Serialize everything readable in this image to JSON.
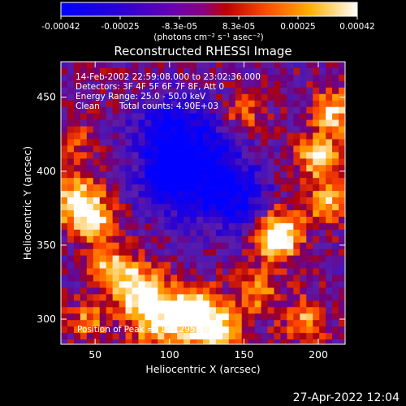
{
  "chart_data": {
    "type": "heatmap",
    "title": "Reconstructed RHESSI Image",
    "xlabel": "Heliocentric X (arcsec)",
    "ylabel": "Heliocentric Y (arcsec)",
    "xlim": [
      27,
      218
    ],
    "ylim": [
      283,
      474
    ],
    "x_ticks": [
      50,
      100,
      150,
      200
    ],
    "y_ticks": [
      300,
      350,
      400,
      450
    ],
    "colorbar": {
      "min": -0.00042,
      "max": 0.00042,
      "tick_labels": [
        "-0.00042",
        "-0.00025",
        "-8.3e-05",
        "8.3e-05",
        "0.00025",
        "0.00042"
      ],
      "unit_label": "(photons cm⁻² s⁻¹ asec⁻²)"
    },
    "annotations": [
      "14-Feb-2002 22:59:08.000 to 23:02:36.000",
      "Detectors: 3F 4F 5F 6F 7F 8F, Att 0",
      "Energy Range: 25.0 - 50.0 keV",
      "Clean",
      "Total counts: 4.90E+03",
      "Position of Peak = [134,295]"
    ],
    "peak_position": [
      134,
      295
    ],
    "grid": false
  },
  "footer": {
    "timestamp": "27-Apr-2022 12:04"
  }
}
